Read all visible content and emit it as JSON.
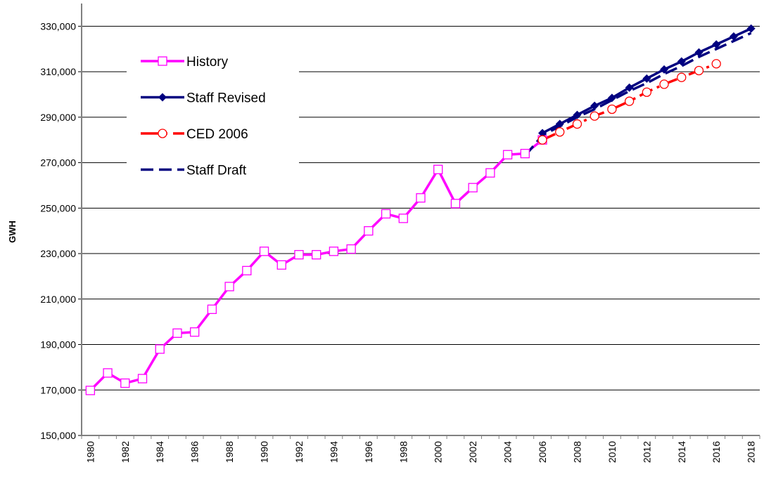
{
  "chart_data": {
    "type": "line",
    "y_label": "GWH",
    "categories": [
      "1980",
      null,
      "1982",
      null,
      "1984",
      null,
      "1986",
      null,
      "1988",
      null,
      "1990",
      null,
      "1992",
      null,
      "1994",
      null,
      "1996",
      null,
      "1998",
      null,
      "2000",
      null,
      "2002",
      null,
      "2004",
      null,
      "2006",
      null,
      "2008",
      null,
      "2010",
      null,
      "2012",
      null,
      "2014",
      null,
      "2016",
      null,
      "2018"
    ],
    "series": [
      {
        "name": "History",
        "color": "#ff00ff",
        "marker": "square",
        "dash": false,
        "values": [
          169800,
          177500,
          173000,
          175000,
          188000,
          195000,
          195500,
          205500,
          215500,
          222500,
          231000,
          225000,
          229500,
          229500,
          231000,
          232000,
          240000,
          247500,
          245500,
          254500,
          267000,
          252000,
          259000,
          265500,
          273500,
          274000,
          280000,
          null,
          null,
          null,
          null,
          null,
          null,
          null,
          null,
          null,
          null,
          null,
          null
        ]
      },
      {
        "name": "Staff Revised",
        "color": "#000080",
        "marker": "diamond",
        "dash": false,
        "values": [
          null,
          null,
          null,
          null,
          null,
          null,
          null,
          null,
          null,
          null,
          null,
          null,
          null,
          null,
          null,
          null,
          null,
          null,
          null,
          null,
          null,
          null,
          null,
          null,
          null,
          null,
          283000,
          287000,
          291000,
          295000,
          298500,
          303000,
          307000,
          311000,
          314500,
          318500,
          322000,
          325500,
          329000
        ]
      },
      {
        "name": "CED 2006",
        "color": "#ff0000",
        "marker": "circle",
        "dash": true,
        "values": [
          null,
          null,
          null,
          null,
          null,
          null,
          null,
          null,
          null,
          null,
          null,
          null,
          null,
          null,
          null,
          null,
          null,
          null,
          null,
          null,
          null,
          null,
          null,
          null,
          null,
          null,
          280000,
          283500,
          287000,
          290500,
          293500,
          297000,
          301000,
          304500,
          307500,
          310500,
          313500,
          null,
          null
        ]
      },
      {
        "name": "Staff Draft",
        "color": "#000080",
        "marker": "none",
        "dash": true,
        "values": [
          null,
          null,
          null,
          null,
          null,
          null,
          null,
          null,
          null,
          null,
          null,
          null,
          null,
          null,
          null,
          null,
          null,
          null,
          null,
          null,
          null,
          null,
          null,
          null,
          null,
          273000,
          282000,
          286000,
          290000,
          293500,
          297500,
          301500,
          305000,
          309000,
          312500,
          316500,
          320000,
          323500,
          327000
        ]
      }
    ],
    "ylim": [
      150000,
      340000
    ],
    "yticks": [
      {
        "value": 150000,
        "label": "150,000"
      },
      {
        "value": 170000,
        "label": "170,000"
      },
      {
        "value": 190000,
        "label": "190,000"
      },
      {
        "value": 210000,
        "label": "210,000"
      },
      {
        "value": 230000,
        "label": "230,000"
      },
      {
        "value": 250000,
        "label": "250,000"
      },
      {
        "value": 270000,
        "label": "270,000"
      },
      {
        "value": 290000,
        "label": "290,000"
      },
      {
        "value": 310000,
        "label": "310,000"
      },
      {
        "value": 330000,
        "label": "330,000"
      }
    ],
    "grid": true,
    "legend": "upper left"
  }
}
